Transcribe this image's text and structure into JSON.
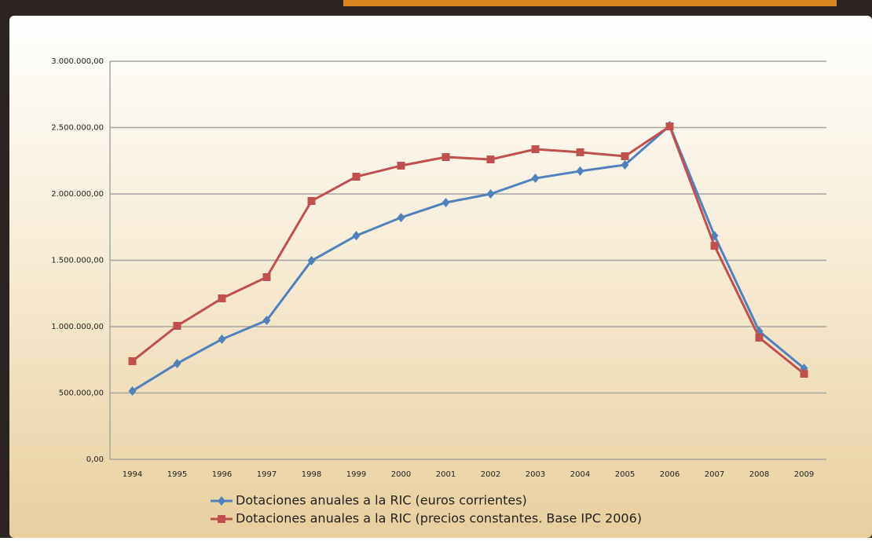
{
  "chart_data": {
    "type": "line",
    "categories": [
      "1994",
      "1995",
      "1996",
      "1997",
      "1998",
      "1999",
      "2000",
      "2001",
      "2002",
      "2003",
      "2004",
      "2005",
      "2006",
      "2007",
      "2008",
      "2009"
    ],
    "series": [
      {
        "name": "Dotaciones anuales a la RIC (euros corrientes)",
        "color": "#4f81bd",
        "marker": "diamond",
        "values": [
          515000,
          722000,
          905000,
          1047000,
          1497000,
          1686000,
          1822000,
          1935000,
          2000000,
          2118000,
          2172000,
          2219000,
          2515000,
          1686000,
          965000,
          686000
        ]
      },
      {
        "name": "Dotaciones anuales a la RIC (precios constantes. Base IPC 2006)",
        "color": "#c0504d",
        "marker": "square",
        "values": [
          740000,
          1006000,
          1213000,
          1373000,
          1947000,
          2130000,
          2213000,
          2278000,
          2260000,
          2337000,
          2314000,
          2284000,
          2509000,
          1609000,
          917000,
          645000
        ]
      }
    ],
    "ylim": [
      0,
      3000000
    ],
    "yticks": [
      {
        "value": 0,
        "label": "0,00"
      },
      {
        "value": 500000,
        "label": "500.000,00"
      },
      {
        "value": 1000000,
        "label": "1.000.000,00"
      },
      {
        "value": 1500000,
        "label": "1.500.000,00"
      },
      {
        "value": 2000000,
        "label": "2.000.000,00"
      },
      {
        "value": 2500000,
        "label": "2.500.000,00"
      },
      {
        "value": 3000000,
        "label": "3.000.000,00"
      }
    ],
    "grid": true,
    "legend": "bottom"
  }
}
